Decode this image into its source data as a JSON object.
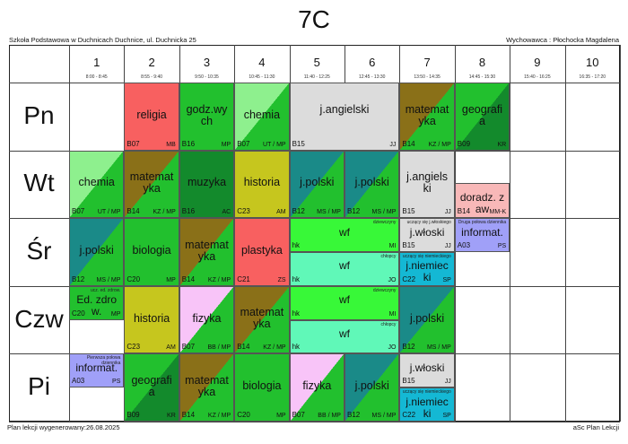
{
  "title": "7C",
  "school": "Szkoła Podstawowa w Duchnicach Duchnice, ul. Duchnicka 25",
  "tutor": "Wychowawca : Płochocka Magdalena",
  "footer_left": "Plan lekcji wygenerowany:26.08.2025",
  "footer_right": "aSc Plan Lekcji",
  "periods": [
    {
      "num": "1",
      "time": "8:00 - 8:45"
    },
    {
      "num": "2",
      "time": "8:55 - 9:40"
    },
    {
      "num": "3",
      "time": "9:50 - 10:35"
    },
    {
      "num": "4",
      "time": "10:45 - 11:30"
    },
    {
      "num": "5",
      "time": "11:40 - 12:25"
    },
    {
      "num": "6",
      "time": "12:45 - 13:30"
    },
    {
      "num": "7",
      "time": "13:50 - 14:35"
    },
    {
      "num": "8",
      "time": "14:45 - 15:30"
    },
    {
      "num": "9",
      "time": "15:40 - 16:25"
    },
    {
      "num": "10",
      "time": "16:35 - 17:20"
    }
  ],
  "days": [
    "Pn",
    "Wt",
    "Śr",
    "Czw",
    "Pi"
  ],
  "colors": {
    "green": "#22c02e",
    "dark_green": "#138a2c",
    "red": "#f86060",
    "olive": "#c6c61e",
    "light_green": "#8ef08e",
    "gray": "#dcdcdc",
    "pink": "#f8c4f8",
    "teal": "#1a8a88",
    "cyan": "#14b8d4",
    "purple": "#a0a0f8",
    "mint": "#60f8b8",
    "lime": "#38f838",
    "salmon": "#f8b8b8",
    "brown": "#8a7018"
  },
  "lessons": [
    {
      "day": 0,
      "p": 1,
      "span": 1,
      "part": "full",
      "subject": "religia",
      "room": "B07",
      "teacher": "MB",
      "bg": "#f86060",
      "diag": null
    },
    {
      "day": 0,
      "p": 2,
      "span": 1,
      "part": "full",
      "subject": "godz.wy ch",
      "room": "B16",
      "teacher": "MP",
      "bg": "#22c02e",
      "diag": null
    },
    {
      "day": 0,
      "p": 3,
      "span": 1,
      "part": "full",
      "subject": "chemia",
      "room": "B07",
      "teacher": "UT / MP",
      "bg": "#8ef08e",
      "diag": "#22c02e"
    },
    {
      "day": 0,
      "p": 4,
      "span": 2,
      "part": "full",
      "subject": "j.angielski",
      "room": "B15",
      "teacher": "JJ",
      "bg": "#dcdcdc",
      "diag": null
    },
    {
      "day": 0,
      "p": 6,
      "span": 1,
      "part": "full",
      "subject": "matemat yka",
      "room": "B14",
      "teacher": "KZ / MP",
      "bg": "#8a7018",
      "diag": "#22c02e"
    },
    {
      "day": 0,
      "p": 7,
      "span": 1,
      "part": "full",
      "subject": "geografi a",
      "room": "B09",
      "teacher": "KR",
      "bg": "#22c02e",
      "diag": "#138a2c"
    },
    {
      "day": 1,
      "p": 0,
      "span": 1,
      "part": "full",
      "subject": "chemia",
      "room": "B07",
      "teacher": "UT / MP",
      "bg": "#8ef08e",
      "diag": "#22c02e"
    },
    {
      "day": 1,
      "p": 1,
      "span": 1,
      "part": "full",
      "subject": "matemat yka",
      "room": "B14",
      "teacher": "KZ / MP",
      "bg": "#8a7018",
      "diag": "#22c02e"
    },
    {
      "day": 1,
      "p": 2,
      "span": 1,
      "part": "full",
      "subject": "muzyka",
      "room": "B16",
      "teacher": "AC",
      "bg": "#138a2c",
      "diag": null
    },
    {
      "day": 1,
      "p": 3,
      "span": 1,
      "part": "full",
      "subject": "historia",
      "room": "C23",
      "teacher": "AM",
      "bg": "#c6c61e",
      "diag": null
    },
    {
      "day": 1,
      "p": 4,
      "span": 1,
      "part": "full",
      "subject": "j.polski",
      "room": "B12",
      "teacher": "MS / MP",
      "bg": "#1a8a88",
      "diag": "#22c02e"
    },
    {
      "day": 1,
      "p": 5,
      "span": 1,
      "part": "full",
      "subject": "j.polski",
      "room": "B12",
      "teacher": "MS / MP",
      "bg": "#1a8a88",
      "diag": "#22c02e"
    },
    {
      "day": 1,
      "p": 6,
      "span": 1,
      "part": "full",
      "subject": "j.angiels ki",
      "room": "B15",
      "teacher": "JJ",
      "bg": "#dcdcdc",
      "diag": null
    },
    {
      "day": 1,
      "p": 7,
      "span": 1,
      "part": "lower",
      "subject": "doradz. zaw",
      "room": "B14",
      "teacher": "MM-K",
      "bg": "#f8b8b8",
      "diag": null
    },
    {
      "day": 2,
      "p": 0,
      "span": 1,
      "part": "full",
      "subject": "j.polski",
      "room": "B12",
      "teacher": "MS / MP",
      "bg": "#1a8a88",
      "diag": "#22c02e"
    },
    {
      "day": 2,
      "p": 1,
      "span": 1,
      "part": "full",
      "subject": "biologia",
      "room": "C20",
      "teacher": "MP",
      "bg": "#22c02e",
      "diag": null
    },
    {
      "day": 2,
      "p": 2,
      "span": 1,
      "part": "full",
      "subject": "matemat yka",
      "room": "B14",
      "teacher": "KZ / MP",
      "bg": "#8a7018",
      "diag": "#22c02e"
    },
    {
      "day": 2,
      "p": 3,
      "span": 1,
      "part": "full",
      "subject": "plastyka",
      "room": "C21",
      "teacher": "ZS",
      "bg": "#f86060",
      "diag": null
    },
    {
      "day": 2,
      "p": 4,
      "span": 2,
      "part": "top",
      "subject": "wf",
      "room": "hk",
      "teacher": "MI",
      "note": "dziewczyny",
      "bg": "#38f838",
      "diag": null
    },
    {
      "day": 2,
      "p": 4,
      "span": 2,
      "part": "bottom",
      "subject": "wf",
      "room": "hk",
      "teacher": "JO",
      "note": "chłopcy",
      "bg": "#60f8b8",
      "diag": null
    },
    {
      "day": 2,
      "p": 6,
      "span": 1,
      "part": "top",
      "subject": "j.włoski",
      "room": "B15",
      "teacher": "JJ",
      "note": "uczący się j.włoskiego",
      "bg": "#dcdcdc",
      "diag": null
    },
    {
      "day": 2,
      "p": 6,
      "span": 1,
      "part": "bottom",
      "subject": "j.niemiec ki",
      "room": "C22",
      "teacher": "SP",
      "note": "uczący się niemieckiego",
      "bg": "#14b8d4",
      "diag": null
    },
    {
      "day": 2,
      "p": 7,
      "span": 1,
      "part": "top",
      "subject": "informat.",
      "room": "A03",
      "teacher": "PS",
      "note": "Druga połowa dziennika",
      "bg": "#a0a0f8",
      "diag": null
    },
    {
      "day": 3,
      "p": 0,
      "span": 1,
      "part": "top",
      "subject": "Ed. zdrow.",
      "room": "C20",
      "teacher": "MP",
      "note": "ucz. ed. zdrow.",
      "bg": "#22c02e",
      "diag": null
    },
    {
      "day": 3,
      "p": 1,
      "span": 1,
      "part": "full",
      "subject": "historia",
      "room": "C23",
      "teacher": "AM",
      "bg": "#c6c61e",
      "diag": null
    },
    {
      "day": 3,
      "p": 2,
      "span": 1,
      "part": "full",
      "subject": "fizyka",
      "room": "B07",
      "teacher": "BB / MP",
      "bg": "#f8c4f8",
      "diag": "#22c02e"
    },
    {
      "day": 3,
      "p": 3,
      "span": 1,
      "part": "full",
      "subject": "matemat yka",
      "room": "B14",
      "teacher": "KZ / MP",
      "bg": "#8a7018",
      "diag": "#22c02e"
    },
    {
      "day": 3,
      "p": 4,
      "span": 2,
      "part": "top",
      "subject": "wf",
      "room": "hk",
      "teacher": "MI",
      "note": "dziewczyny",
      "bg": "#38f838",
      "diag": null
    },
    {
      "day": 3,
      "p": 4,
      "span": 2,
      "part": "bottom",
      "subject": "wf",
      "room": "hk",
      "teacher": "JO",
      "note": "chłopcy",
      "bg": "#60f8b8",
      "diag": null
    },
    {
      "day": 3,
      "p": 6,
      "span": 1,
      "part": "full",
      "subject": "j.polski",
      "room": "B12",
      "teacher": "MS / MP",
      "bg": "#1a8a88",
      "diag": "#22c02e"
    },
    {
      "day": 4,
      "p": 0,
      "span": 1,
      "part": "top",
      "subject": "informat.",
      "room": "A03",
      "teacher": "PS",
      "note": "Pierwsza połowa dziennika",
      "bg": "#a0a0f8",
      "diag": null
    },
    {
      "day": 4,
      "p": 1,
      "span": 1,
      "part": "full",
      "subject": "geografi a",
      "room": "B09",
      "teacher": "KR",
      "bg": "#22c02e",
      "diag": "#138a2c"
    },
    {
      "day": 4,
      "p": 2,
      "span": 1,
      "part": "full",
      "subject": "matemat yka",
      "room": "B14",
      "teacher": "KZ / MP",
      "bg": "#8a7018",
      "diag": "#22c02e"
    },
    {
      "day": 4,
      "p": 3,
      "span": 1,
      "part": "full",
      "subject": "biologia",
      "room": "C20",
      "teacher": "MP",
      "bg": "#22c02e",
      "diag": null
    },
    {
      "day": 4,
      "p": 4,
      "span": 1,
      "part": "full",
      "subject": "fizyka",
      "room": "B07",
      "teacher": "BB / MP",
      "bg": "#f8c4f8",
      "diag": "#22c02e"
    },
    {
      "day": 4,
      "p": 5,
      "span": 1,
      "part": "full",
      "subject": "j.polski",
      "room": "B12",
      "teacher": "MS / MP",
      "bg": "#1a8a88",
      "diag": "#22c02e"
    },
    {
      "day": 4,
      "p": 6,
      "span": 1,
      "part": "top",
      "subject": "j.włoski",
      "room": "B15",
      "teacher": "JJ",
      "note": "",
      "bg": "#dcdcdc",
      "diag": null
    },
    {
      "day": 4,
      "p": 6,
      "span": 1,
      "part": "bottom",
      "subject": "j.niemiec ki",
      "room": "C22",
      "teacher": "SP",
      "note": "uczący się niemieckiego",
      "bg": "#14b8d4",
      "diag": null
    }
  ]
}
